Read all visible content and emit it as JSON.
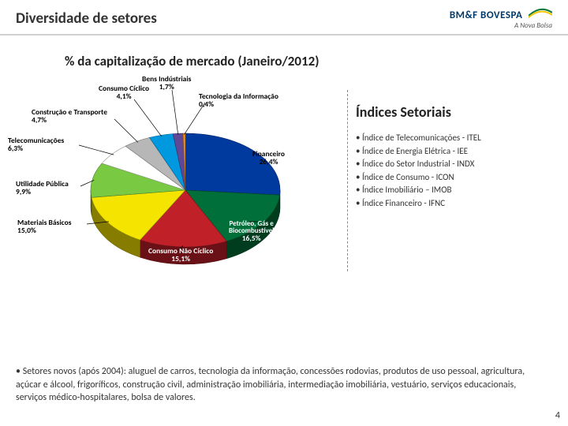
{
  "header": {
    "title": "Diversidade de setores",
    "brand": "BM&F BOVESPA",
    "tagline": "A Nova Bolsa"
  },
  "chart": {
    "title": "% da capitalização de mercado (Janeiro/2012)",
    "type": "pie",
    "background_color": "#ffffff",
    "title_fontsize": 17,
    "label_fontsize": 9.5,
    "slices": [
      {
        "label": "Financeiro",
        "pct": 26.4,
        "color": "#003a9e"
      },
      {
        "label": "Petróleo, Gás e Biocombustível",
        "pct": 16.5,
        "color": "#006f3a"
      },
      {
        "label": "Consumo Não Cíclico",
        "pct": 15.1,
        "color": "#c02028"
      },
      {
        "label": "Materiais Básicos",
        "pct": 15.0,
        "color": "#f4e400"
      },
      {
        "label": "Utilidade Pública",
        "pct": 9.9,
        "color": "#7ac943"
      },
      {
        "label": "Telecomunicações",
        "pct": 6.3,
        "color": "#ffffff",
        "border": "#999"
      },
      {
        "label": "Construção e Transporte",
        "pct": 4.7,
        "color": "#b7b7b7"
      },
      {
        "label": "Consumo Cíclico",
        "pct": 4.1,
        "color": "#0099e0"
      },
      {
        "label": "Bens Indústriais",
        "pct": 1.7,
        "color": "#604898"
      },
      {
        "label": "Tecnologia da Informação",
        "pct": 0.4,
        "color": "#e98f2e"
      }
    ]
  },
  "indices": {
    "title": "Índices Setoriais",
    "items": [
      "Índice de Telecomunicações - ITEL",
      "Índice de Energia Elétrica - IEE",
      "Índice do Setor Industrial - INDX",
      "Índice de Consumo - ICON",
      "Índice Imobiliário – IMOB",
      "Índice Financeiro - IFNC"
    ]
  },
  "footnote": "• Setores novos (após 2004): aluguel de carros, tecnologia da informação, concessões rodovias, produtos de uso pessoal, agricultura, açúcar e álcool, frigoríficos, construção civil, administração imobiliária, intermediação imobiliária, vestuário, serviços educacionais, serviços médico-hospitalares, bolsa de valores.",
  "page_number": "4",
  "colors": {
    "text": "#333333",
    "rule": "#d0d0d0",
    "brand": "#003a6a"
  }
}
